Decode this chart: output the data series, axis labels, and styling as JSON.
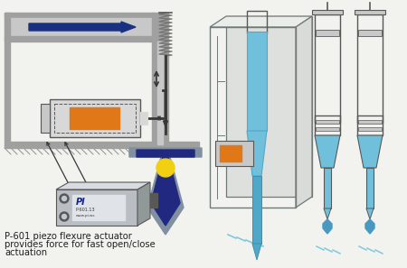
{
  "bg_color": "#f2f2ee",
  "caption_lines": [
    "P-601 piezo flexure actuator",
    "provides force for fast open/close",
    "actuation"
  ],
  "caption_fontsize": 7.2,
  "arrow_color": "#1a3080",
  "gray_wall": "#a0a0a0",
  "gray_light": "#c8c8c8",
  "gray_mid": "#909090",
  "gray_dark": "#585858",
  "gray_bg": "#d8d8d8",
  "orange_color": "#e07818",
  "yellow_color": "#f0d010",
  "blue_light": "#70c0dc",
  "blue_tip": "#50a8c8",
  "blue_drop": "#4898c0",
  "blue_splash": "#80c8e0",
  "valve_blue": "#202880",
  "valve_gray": "#8090a0",
  "line_color": "#383838",
  "spring_color": "#787878",
  "housing_line": "#707878",
  "housing_fill": "#e8eae8",
  "pi_blue": "#1020a0"
}
